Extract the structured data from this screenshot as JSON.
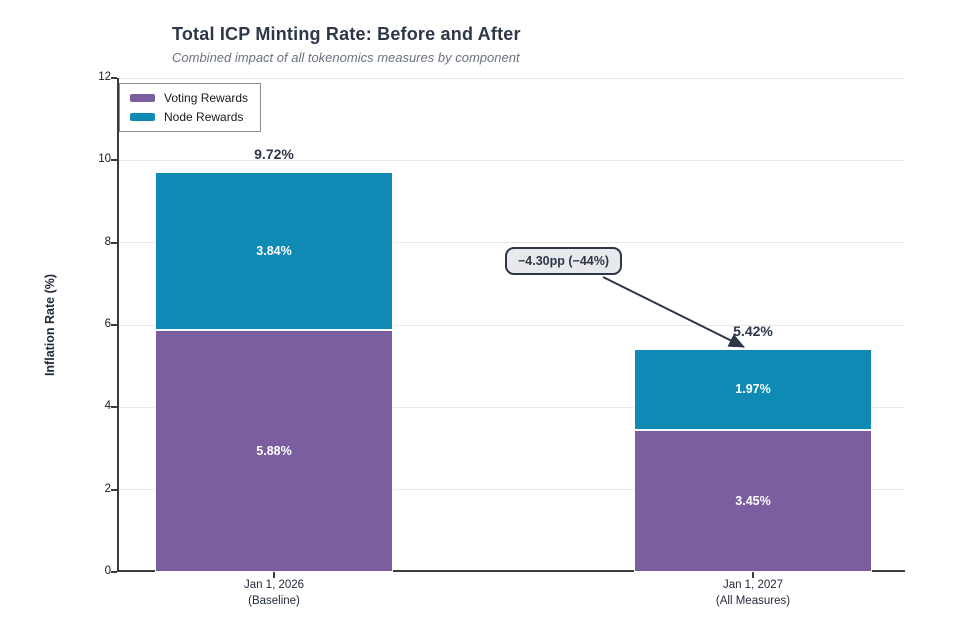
{
  "title": "Total ICP Minting Rate: Before and After",
  "subtitle": "Combined impact of all tokenomics measures by component",
  "annotation": {
    "text": "−4.30pp (−44%)"
  },
  "legend": {
    "items": [
      {
        "label": "Voting Rewards",
        "color": "#7a5ea0"
      },
      {
        "label": "Node Rewards",
        "color": "#0e8ab5"
      }
    ]
  },
  "chart_data": {
    "type": "bar",
    "stacked": true,
    "title": "Total ICP Minting Rate: Before and After",
    "subtitle": "Combined impact of all tokenomics measures by component",
    "categories": [
      {
        "line1": "Jan 1, 2026",
        "line2": "(Baseline)"
      },
      {
        "line1": "Jan 1, 2027",
        "line2": "(All Measures)"
      }
    ],
    "series": [
      {
        "name": "Voting Rewards",
        "color": "#7a5ea0",
        "values": [
          5.88,
          3.45
        ],
        "labels": [
          "5.88%",
          "3.45%"
        ]
      },
      {
        "name": "Node Rewards",
        "color": "#0e8ab5",
        "values": [
          3.84,
          1.97
        ],
        "labels": [
          "3.84%",
          "1.97%"
        ]
      }
    ],
    "totals": [
      "9.72%",
      "5.42%"
    ],
    "annotation": "−4.30pp (−44%)",
    "xlabel": "",
    "ylabel": "Inflation Rate (%)",
    "ylim": [
      0,
      12
    ],
    "yticks": [
      0,
      2,
      4,
      6,
      8,
      10,
      12
    ],
    "grid": true,
    "legend_position": "upper-left"
  },
  "colors": {
    "text_dark": "#2d3748",
    "subtitle_gray": "#6b7280",
    "gridline": "#e8e8e8",
    "spine": "#3b3b3b",
    "bar_value_text": "#ffffff",
    "annotation_bg": "#e7e9ec",
    "annotation_border": "#2d3748",
    "arrow": "#2d3748"
  }
}
